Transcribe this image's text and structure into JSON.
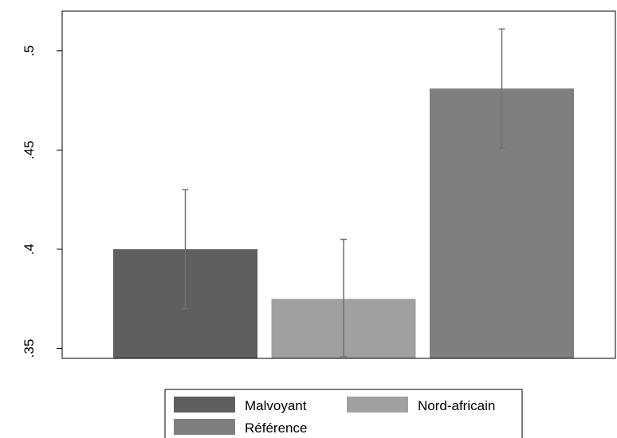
{
  "chart_data": {
    "type": "bar",
    "categories": [
      "Malvoyant",
      "Nord-africain",
      "Référence"
    ],
    "series": [
      {
        "name": "Malvoyant",
        "value": 0.4,
        "ci_low": 0.37,
        "ci_high": 0.43,
        "color": "#5f5f5f"
      },
      {
        "name": "Nord-africain",
        "value": 0.375,
        "ci_low": 0.346,
        "ci_high": 0.405,
        "color": "#a0a0a0"
      },
      {
        "name": "Référence",
        "value": 0.481,
        "ci_low": 0.451,
        "ci_high": 0.511,
        "color": "#7f7f7f"
      }
    ],
    "error_bar_color": "#707070",
    "ylim": [
      0.345,
      0.52
    ],
    "yticks": [
      0.35,
      0.4,
      0.45,
      0.5
    ],
    "ytick_labels": [
      ".35",
      ".4",
      ".45",
      ".5"
    ],
    "grid": false,
    "legend_position": "bottom",
    "xlabel": "",
    "ylabel": ""
  }
}
